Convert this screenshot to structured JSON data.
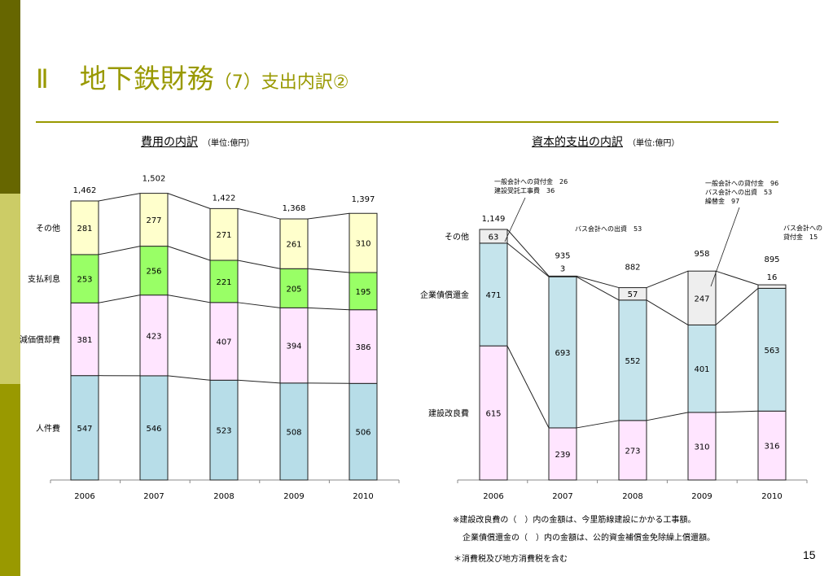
{
  "slide": {
    "title_roman": "Ⅱ",
    "title_main": "地下鉄財務",
    "title_sub": "（7）支出内訳②",
    "page_number": "15",
    "colors": {
      "accent": "#999900",
      "sidebar_dark": "#666600",
      "sidebar_light": "#cccc66"
    }
  },
  "notes": {
    "line1": "※建設改良費の（　）内の金額は、今里筋線建設にかかる工事額。",
    "line2": "企業債償還金の（　）内の金額は、公的資金補償金免除繰上償還額。",
    "line3": "＊消費税及び地方消費税を含む"
  },
  "chart_data": [
    {
      "type": "bar",
      "stacked": true,
      "title": "費用の内訳",
      "unit": "（単位:億円）",
      "categories": [
        "2006",
        "2007",
        "2008",
        "2009",
        "2010"
      ],
      "series": [
        {
          "name": "人件費",
          "color": "#b7dde8",
          "values": [
            547,
            546,
            523,
            508,
            506
          ]
        },
        {
          "name": "減価償却費",
          "color": "#ffe5ff",
          "values": [
            381,
            423,
            407,
            394,
            386
          ]
        },
        {
          "name": "支払利息",
          "color": "#99ff66",
          "values": [
            253,
            256,
            221,
            205,
            195
          ]
        },
        {
          "name": "その他",
          "color": "#ffffcc",
          "values": [
            281,
            277,
            271,
            261,
            310
          ]
        }
      ],
      "totals": [
        "1,462",
        "1,502",
        "1,422",
        "1,368",
        "1,397"
      ],
      "ylim": [
        0,
        1500
      ]
    },
    {
      "type": "bar",
      "stacked": true,
      "title": "資本的支出の内訳",
      "unit": "（単位:億円）",
      "categories": [
        "2006",
        "2007",
        "2008",
        "2009",
        "2010"
      ],
      "series": [
        {
          "name": "建設改良費",
          "color": "#ffe5ff",
          "values": [
            615,
            239,
            273,
            310,
            316
          ]
        },
        {
          "name": "企業債償還金",
          "color": "#c5e4ec",
          "values": [
            471,
            693,
            552,
            401,
            563
          ]
        },
        {
          "name": "その他",
          "color": "#eeeeee",
          "values": [
            63,
            3,
            57,
            247,
            16
          ]
        }
      ],
      "totals": [
        "1,149",
        "935",
        "882",
        "958",
        "895"
      ],
      "annotations": [
        {
          "lines": [
            "一般会計への貸付金　26",
            "建設受託工事費　36"
          ],
          "target": "2006 その他"
        },
        {
          "lines": [
            "バス会計への出資　53"
          ],
          "target": "2008 その他"
        },
        {
          "lines": [
            "一般会計への貸付金　96",
            "バス会計への出資　53",
            "繰替金　97"
          ],
          "target": "2009 その他"
        },
        {
          "lines": [
            "バス会計への",
            "貸付金　15"
          ],
          "target": "2010 その他"
        }
      ],
      "ylim": [
        0,
        1150
      ]
    }
  ]
}
